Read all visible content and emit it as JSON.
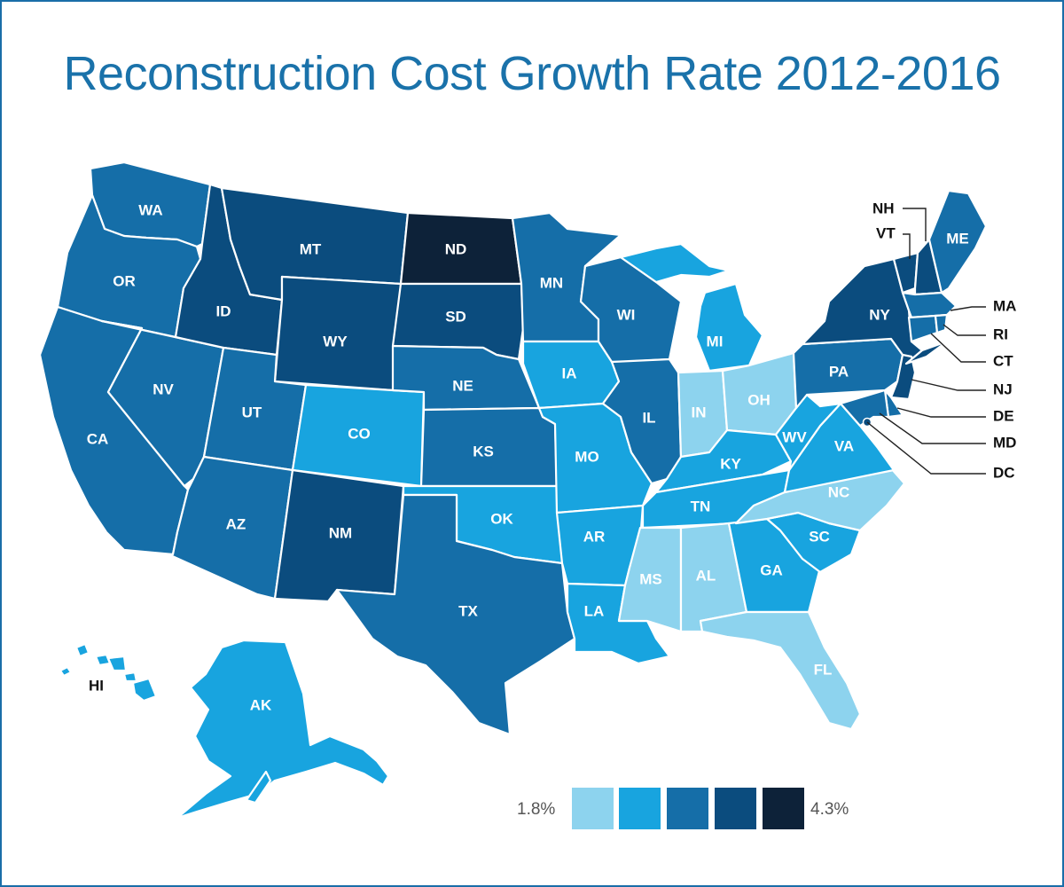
{
  "title": "Reconstruction Cost Growth Rate 2012-2016",
  "palette": {
    "c1": "#8dd3ee",
    "c2": "#18a4df",
    "c3": "#156ea8",
    "c4": "#0b4c7e",
    "c5": "#0d2239"
  },
  "legend": {
    "min_label": "1.8%",
    "max_label": "4.3%",
    "bins": [
      "c1",
      "c2",
      "c3",
      "c4",
      "c5"
    ]
  },
  "states": [
    {
      "abbr": "WA",
      "bin": "c3"
    },
    {
      "abbr": "OR",
      "bin": "c3"
    },
    {
      "abbr": "CA",
      "bin": "c3"
    },
    {
      "abbr": "NV",
      "bin": "c3"
    },
    {
      "abbr": "ID",
      "bin": "c4"
    },
    {
      "abbr": "MT",
      "bin": "c4"
    },
    {
      "abbr": "WY",
      "bin": "c4"
    },
    {
      "abbr": "UT",
      "bin": "c3"
    },
    {
      "abbr": "AZ",
      "bin": "c3"
    },
    {
      "abbr": "CO",
      "bin": "c2"
    },
    {
      "abbr": "NM",
      "bin": "c4"
    },
    {
      "abbr": "ND",
      "bin": "c5"
    },
    {
      "abbr": "SD",
      "bin": "c4"
    },
    {
      "abbr": "NE",
      "bin": "c3"
    },
    {
      "abbr": "KS",
      "bin": "c3"
    },
    {
      "abbr": "OK",
      "bin": "c2"
    },
    {
      "abbr": "TX",
      "bin": "c3"
    },
    {
      "abbr": "MN",
      "bin": "c3"
    },
    {
      "abbr": "IA",
      "bin": "c2"
    },
    {
      "abbr": "MO",
      "bin": "c2"
    },
    {
      "abbr": "AR",
      "bin": "c2"
    },
    {
      "abbr": "LA",
      "bin": "c2"
    },
    {
      "abbr": "WI",
      "bin": "c3"
    },
    {
      "abbr": "IL",
      "bin": "c3"
    },
    {
      "abbr": "MI",
      "bin": "c2"
    },
    {
      "abbr": "IN",
      "bin": "c1"
    },
    {
      "abbr": "OH",
      "bin": "c1"
    },
    {
      "abbr": "KY",
      "bin": "c2"
    },
    {
      "abbr": "TN",
      "bin": "c2"
    },
    {
      "abbr": "MS",
      "bin": "c1"
    },
    {
      "abbr": "AL",
      "bin": "c1"
    },
    {
      "abbr": "GA",
      "bin": "c2"
    },
    {
      "abbr": "FL",
      "bin": "c1"
    },
    {
      "abbr": "SC",
      "bin": "c2"
    },
    {
      "abbr": "NC",
      "bin": "c1"
    },
    {
      "abbr": "VA",
      "bin": "c2"
    },
    {
      "abbr": "WV",
      "bin": "c2"
    },
    {
      "abbr": "PA",
      "bin": "c3"
    },
    {
      "abbr": "NY",
      "bin": "c4"
    },
    {
      "abbr": "VT",
      "bin": "c4"
    },
    {
      "abbr": "NH",
      "bin": "c4"
    },
    {
      "abbr": "ME",
      "bin": "c3"
    },
    {
      "abbr": "MA",
      "bin": "c3"
    },
    {
      "abbr": "RI",
      "bin": "c3"
    },
    {
      "abbr": "CT",
      "bin": "c3"
    },
    {
      "abbr": "NJ",
      "bin": "c4"
    },
    {
      "abbr": "DE",
      "bin": "c3"
    },
    {
      "abbr": "MD",
      "bin": "c3"
    },
    {
      "abbr": "DC",
      "bin": "c4"
    },
    {
      "abbr": "AK",
      "bin": "c2"
    },
    {
      "abbr": "HI",
      "bin": "c2"
    }
  ]
}
